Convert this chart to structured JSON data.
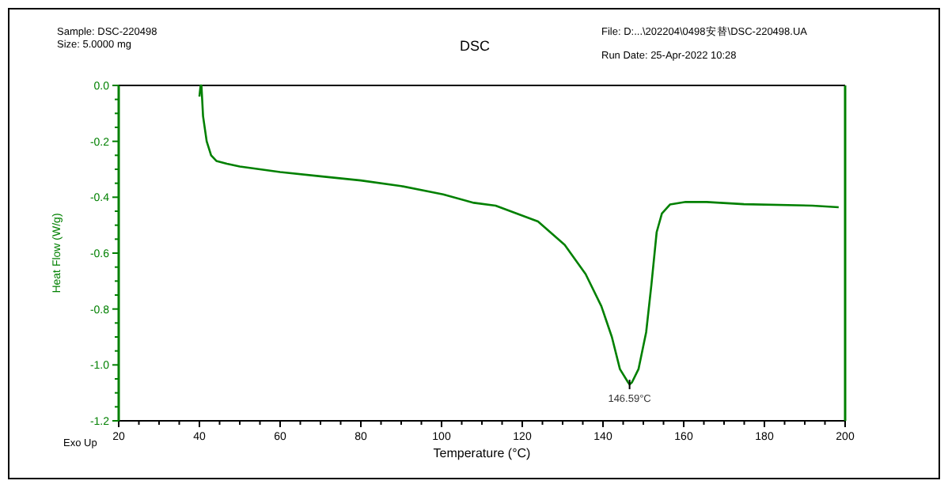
{
  "chart_data": {
    "type": "line",
    "title": "DSC",
    "xlabel": "Temperature (°C)",
    "ylabel": "Heat Flow (W/g)",
    "annotations": [
      "Sample: DSC-220498",
      "Size:  5.0000 mg",
      "File: D:...\\202204\\0498安替\\DSC-220498.UA",
      "Run Date: 25-Apr-2022 10:28",
      "Exo Up",
      {
        "text": "146.59°C",
        "x": 146.59,
        "y": -1.07
      }
    ],
    "x": [
      40.0,
      40.3,
      40.5,
      40.9,
      41.8,
      42.9,
      44.2,
      46.8,
      50,
      60,
      70,
      80,
      90,
      100.4,
      108,
      113.4,
      123.9,
      130.5,
      135.7,
      139.6,
      142.2,
      144.2,
      146.2,
      146.59,
      147.2,
      148.8,
      150.7,
      152.0,
      153.3,
      154.6,
      156.6,
      160.5,
      165.7,
      174.9,
      191.9,
      198.4
    ],
    "series": [
      {
        "color": "#008000",
        "values": [
          -0.04,
          0.0,
          0.0,
          -0.11,
          -0.2,
          -0.25,
          -0.27,
          -0.28,
          -0.29,
          -0.31,
          -0.325,
          -0.34,
          -0.36,
          -0.39,
          -0.42,
          -0.43,
          -0.487,
          -0.57,
          -0.675,
          -0.79,
          -0.9,
          -1.015,
          -1.062,
          -1.07,
          -1.062,
          -1.015,
          -0.883,
          -0.713,
          -0.525,
          -0.458,
          -0.426,
          -0.417,
          -0.417,
          -0.425,
          -0.43,
          -0.436
        ]
      }
    ],
    "xlim": [
      20,
      200
    ],
    "xticks": [
      20,
      40,
      60,
      80,
      100,
      120,
      140,
      160,
      180,
      200
    ],
    "ylim": [
      -1.2,
      0
    ],
    "yticks": [
      {
        "value": -1.2,
        "label": "-1.2"
      },
      {
        "value": -1.0,
        "label": "-1.0"
      },
      {
        "value": -0.8,
        "label": "-0.8"
      },
      {
        "value": -0.6,
        "label": "-0.6"
      },
      {
        "value": -0.4,
        "label": "-0.4"
      },
      {
        "value": -0.2,
        "label": "-0.2"
      },
      {
        "value": 0,
        "label": "0.0"
      }
    ],
    "grid": false,
    "marker": "none",
    "line_style": "solid"
  }
}
